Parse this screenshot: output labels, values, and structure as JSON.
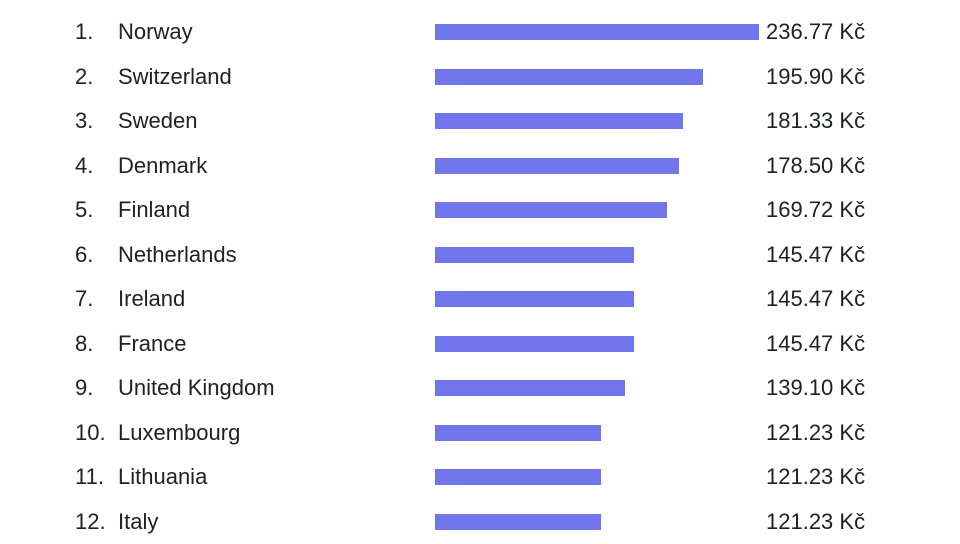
{
  "page": {
    "background": "#ffffff",
    "text_color": "#202124"
  },
  "chart_data": {
    "type": "bar",
    "orientation": "horizontal",
    "title": "",
    "unit_suffix": " Kč",
    "ranks": [
      "1.",
      "2.",
      "3.",
      "4.",
      "5.",
      "6.",
      "7.",
      "8.",
      "9.",
      "10.",
      "11.",
      "12."
    ],
    "categories": [
      "Norway",
      "Switzerland",
      "Sweden",
      "Denmark",
      "Finland",
      "Netherlands",
      "Ireland",
      "France",
      "United Kingdom",
      "Luxembourg",
      "Lithuania",
      "Italy"
    ],
    "values": [
      236.77,
      195.9,
      181.33,
      178.5,
      169.72,
      145.47,
      145.47,
      145.47,
      139.1,
      121.23,
      121.23,
      121.23
    ],
    "value_labels": [
      "236.77 Kč",
      "195.90 Kč",
      "181.33 Kč",
      "178.50 Kč",
      "169.72 Kč",
      "145.47 Kč",
      "145.47 Kč",
      "145.47 Kč",
      "139.10 Kč",
      "121.23 Kč",
      "121.23 Kč",
      "121.23 Kč"
    ],
    "xlim": [
      0,
      236.77
    ],
    "bar_color": "#7175ec",
    "grid": false,
    "legend": false,
    "value_label_position": "right"
  }
}
